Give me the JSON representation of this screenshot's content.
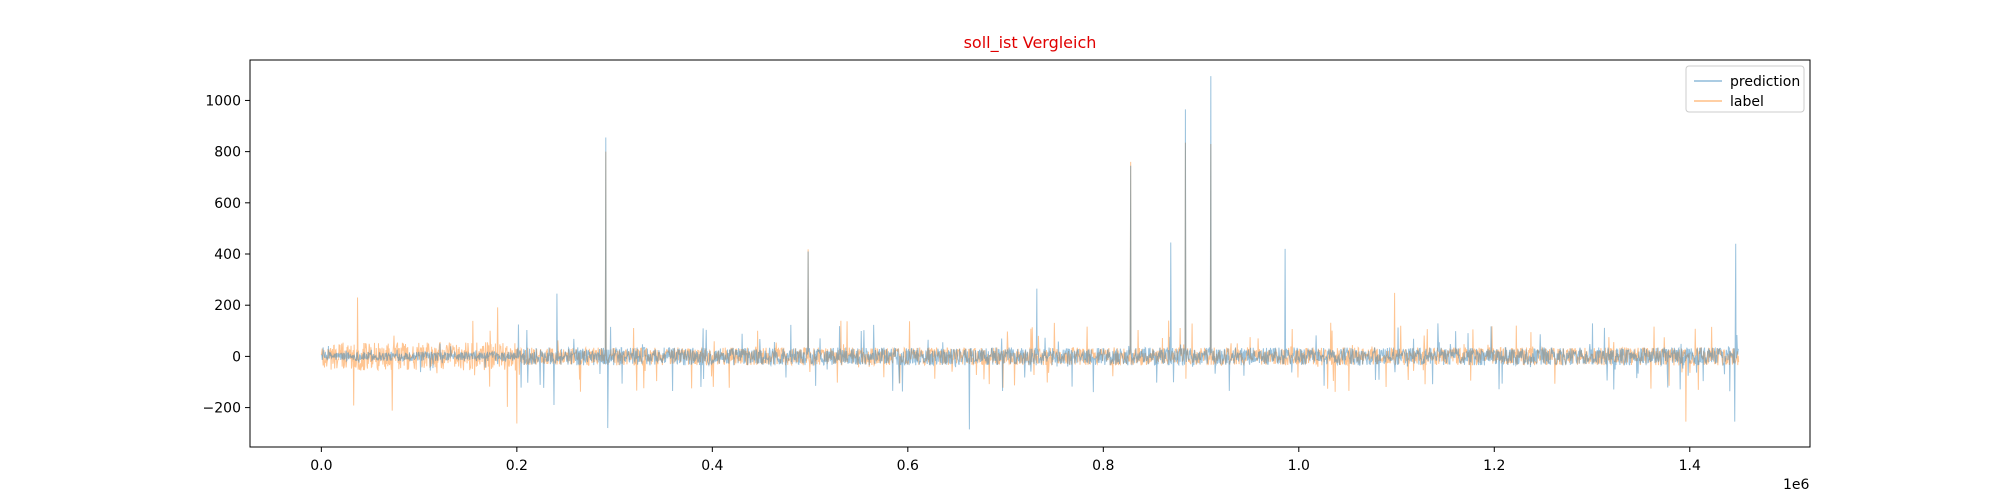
{
  "chart_data": {
    "type": "line",
    "title": "soll_ist Vergleich",
    "title_color": "#e00000",
    "xlabel": "",
    "ylabel": "",
    "x_offset_label": "1e6",
    "xlim": [
      -0.073,
      1.523
    ],
    "ylim": [
      -354,
      1158
    ],
    "x_ticks": [
      0.0,
      0.2,
      0.4,
      0.6,
      0.8,
      1.0,
      1.2,
      1.4
    ],
    "x_tick_labels": [
      "0.0",
      "0.2",
      "0.4",
      "0.6",
      "0.8",
      "1.0",
      "1.2",
      "1.4"
    ],
    "y_ticks": [
      -200,
      0,
      200,
      400,
      600,
      800,
      1000
    ],
    "y_tick_labels": [
      "−200",
      "0",
      "200",
      "400",
      "600",
      "800",
      "1000"
    ],
    "grid": false,
    "legend_position": "top-right",
    "x_range": [
      0.0,
      1.45
    ],
    "series": [
      {
        "name": "prediction",
        "color": "#1f77b4",
        "peaks": [
          {
            "x": 0.238,
            "y": -190
          },
          {
            "x": 0.241,
            "y": 245
          },
          {
            "x": 0.291,
            "y": 855
          },
          {
            "x": 0.293,
            "y": -280
          },
          {
            "x": 0.498,
            "y": 410
          },
          {
            "x": 0.663,
            "y": -285
          },
          {
            "x": 0.732,
            "y": 265
          },
          {
            "x": 0.828,
            "y": 745
          },
          {
            "x": 0.869,
            "y": 445
          },
          {
            "x": 0.884,
            "y": 965
          },
          {
            "x": 0.91,
            "y": 1095
          },
          {
            "x": 0.986,
            "y": 420
          },
          {
            "x": 1.447,
            "y": 440
          },
          {
            "x": 1.446,
            "y": -255
          }
        ]
      },
      {
        "name": "label",
        "color": "#ff7f0e",
        "peaks": [
          {
            "x": 0.037,
            "y": 230
          },
          {
            "x": 0.2,
            "y": -262
          },
          {
            "x": 0.291,
            "y": 800
          },
          {
            "x": 0.498,
            "y": 418
          },
          {
            "x": 0.828,
            "y": 760
          },
          {
            "x": 0.884,
            "y": 835
          },
          {
            "x": 0.91,
            "y": 830
          },
          {
            "x": 1.098,
            "y": 248
          },
          {
            "x": 1.396,
            "y": -255
          }
        ]
      }
    ]
  }
}
